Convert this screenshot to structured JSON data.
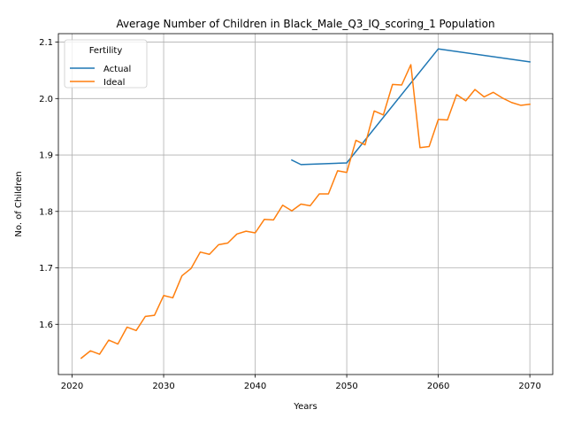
{
  "chart_data": {
    "type": "line",
    "title": "Average Number of Children in Black_Male_Q3_IQ_scoring_1 Population",
    "xlabel": "Years",
    "ylabel": "No. of Children",
    "xlim": [
      2018.5,
      2072.5
    ],
    "ylim": [
      1.511,
      2.115
    ],
    "xticks": [
      2020,
      2030,
      2040,
      2050,
      2060,
      2070
    ],
    "yticks": [
      1.6,
      1.7,
      1.8,
      1.9,
      2.0,
      2.1
    ],
    "grid": true,
    "legend": {
      "title": "Fertility",
      "position": "top-left"
    },
    "series": [
      {
        "name": "Actual",
        "color": "#1f77b4",
        "x": [
          2044,
          2045,
          2050,
          2060,
          2070
        ],
        "y": [
          1.891,
          1.883,
          1.886,
          2.088,
          2.065
        ]
      },
      {
        "name": "Ideal",
        "color": "#ff7f0e",
        "x": [
          2021,
          2022,
          2023,
          2024,
          2025,
          2026,
          2027,
          2028,
          2029,
          2030,
          2031,
          2032,
          2033,
          2034,
          2035,
          2036,
          2037,
          2038,
          2039,
          2040,
          2041,
          2042,
          2043,
          2044,
          2045,
          2046,
          2047,
          2048,
          2049,
          2050,
          2051,
          2052,
          2053,
          2054,
          2055,
          2056,
          2057,
          2058,
          2059,
          2060,
          2061,
          2062,
          2063,
          2064,
          2065,
          2066,
          2067,
          2068,
          2069,
          2070
        ],
        "y": [
          1.54,
          1.553,
          1.547,
          1.572,
          1.565,
          1.595,
          1.589,
          1.614,
          1.616,
          1.651,
          1.647,
          1.686,
          1.699,
          1.728,
          1.724,
          1.741,
          1.744,
          1.76,
          1.765,
          1.762,
          1.786,
          1.785,
          1.811,
          1.801,
          1.813,
          1.81,
          1.831,
          1.831,
          1.872,
          1.869,
          1.926,
          1.918,
          1.978,
          1.971,
          2.025,
          2.024,
          2.06,
          1.913,
          1.915,
          1.963,
          1.962,
          2.007,
          1.996,
          2.016,
          2.003,
          2.011,
          2.001,
          1.993,
          1.988,
          1.99
        ]
      }
    ]
  }
}
